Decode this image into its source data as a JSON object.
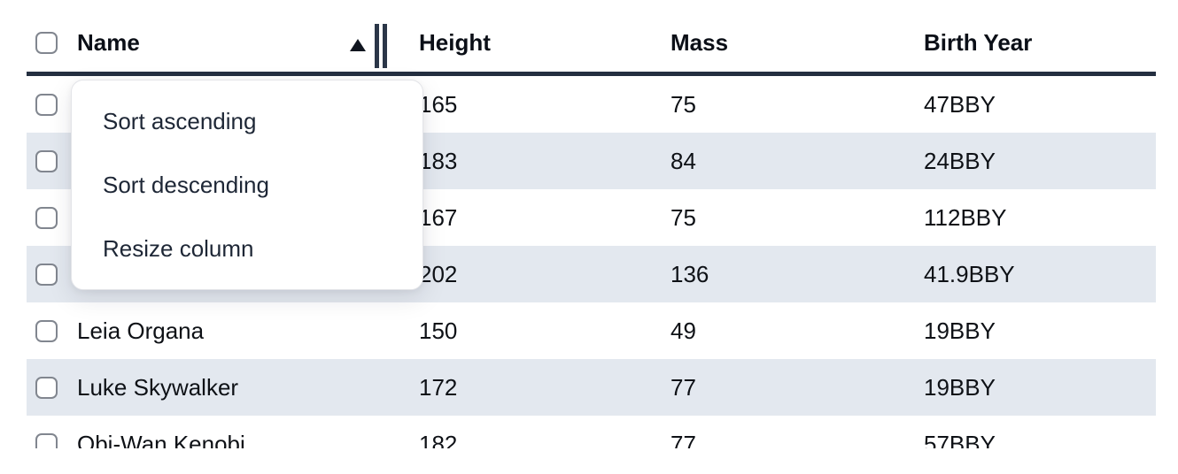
{
  "table": {
    "header": {
      "columns": [
        {
          "label": "Name",
          "sorted": "ascending"
        },
        {
          "label": "Height"
        },
        {
          "label": "Mass"
        },
        {
          "label": "Birth Year"
        }
      ]
    },
    "rows": [
      {
        "name": "",
        "height": "165",
        "mass": "75",
        "birth_year": "47BBY"
      },
      {
        "name": "",
        "height": "183",
        "mass": "84",
        "birth_year": "24BBY"
      },
      {
        "name": "",
        "height": "167",
        "mass": "75",
        "birth_year": "112BBY"
      },
      {
        "name": "",
        "height": "202",
        "mass": "136",
        "birth_year": "41.9BBY"
      },
      {
        "name": "Leia Organa",
        "height": "150",
        "mass": "49",
        "birth_year": "19BBY"
      },
      {
        "name": "Luke Skywalker",
        "height": "172",
        "mass": "77",
        "birth_year": "19BBY"
      },
      {
        "name": "Obi-Wan Kenobi",
        "height": "182",
        "mass": "77",
        "birth_year": "57BBY"
      }
    ]
  },
  "context_menu": {
    "items": [
      {
        "label": "Sort ascending"
      },
      {
        "label": "Sort descending"
      },
      {
        "label": "Resize column"
      }
    ]
  },
  "icons": {
    "sort_ascending_indicator": "triangle-up",
    "column_resize_handle": "double-bar"
  },
  "colors": {
    "row_stripe": "#e3e8ef",
    "header_border": "#242f40",
    "checkbox_border": "#81868f",
    "menu_border": "#e3e4e8",
    "header_text": "#0b0f17",
    "cell_text": "#0e1116",
    "menu_text": "#1e2736"
  }
}
